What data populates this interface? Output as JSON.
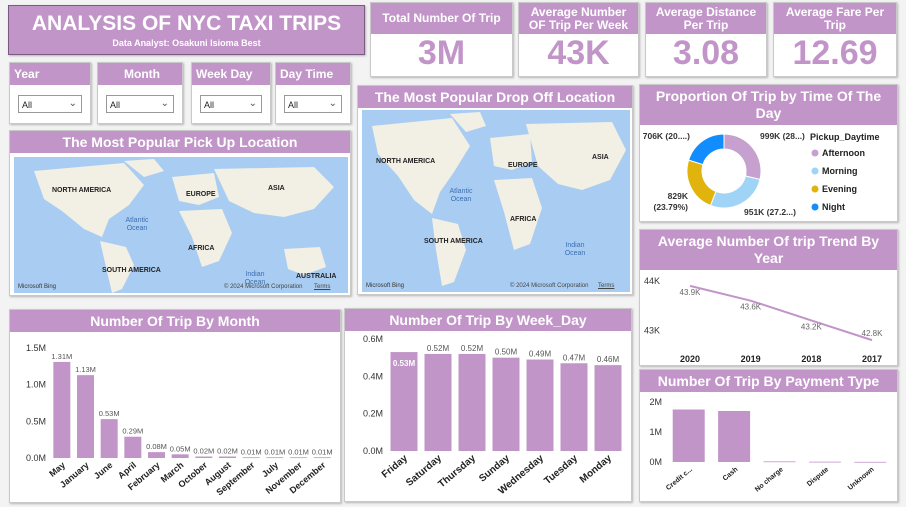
{
  "header": {
    "title": "ANALYSIS OF NYC TAXI TRIPS",
    "subtitle": "Data Analyst: Osakuni Isioma Best"
  },
  "kpis": [
    {
      "title": "Total Number Of Trip",
      "value": "3M"
    },
    {
      "title": "Average Number OF Trip Per Week",
      "value": "43K"
    },
    {
      "title": "Average Distance Per Trip",
      "value": "3.08"
    },
    {
      "title": "Average Fare Per Trip",
      "value": "12.69"
    }
  ],
  "slicers": [
    {
      "title": "Year",
      "value": "All"
    },
    {
      "title": "Month",
      "value": "All"
    },
    {
      "title": "Week Day",
      "value": "All"
    },
    {
      "title": "Day Time",
      "value": "All"
    }
  ],
  "maps": {
    "pickup": {
      "title": "The Most Popular Pick Up Location",
      "labels": [
        "NORTH AMERICA",
        "EUROPE",
        "ASIA",
        "Atlantic Ocean",
        "AFRICA",
        "SOUTH AMERICA",
        "Indian Ocean",
        "AUSTRALIA"
      ]
    },
    "dropoff": {
      "title": "The Most Popular Drop Off Location",
      "labels": [
        "NORTH AMERICA",
        "EUROPE",
        "ASIA",
        "Atlantic Ocean",
        "AFRICA",
        "SOUTH AMERICA",
        "Indian Ocean"
      ]
    },
    "provider": "Microsoft Bing",
    "copyright": "© 2024 Microsoft Corporation",
    "terms": "Terms"
  },
  "colors": {
    "accent": "#c295c9",
    "afternoon": "#c6a1cf",
    "morning": "#9fd4f6",
    "evening": "#e0b30d",
    "night": "#118dff"
  },
  "chart_data": [
    {
      "id": "donut",
      "type": "pie",
      "title": "Proportion Of Trip by Time Of The Day",
      "legend_title": "Pickup_Daytime",
      "legend_position": "right",
      "series": [
        {
          "name": "Afternoon",
          "value": 999,
          "label": "999K (28...)"
        },
        {
          "name": "Morning",
          "value": 951,
          "label": "951K (27.2...)"
        },
        {
          "name": "Evening",
          "value": 829,
          "label": "829K (23.79%)"
        },
        {
          "name": "Night",
          "value": 706,
          "label": "706K (20....)"
        }
      ]
    },
    {
      "id": "trend",
      "type": "line",
      "title": "Average Number Of trip Trend By Year",
      "categories": [
        "2020",
        "2019",
        "2018",
        "2017"
      ],
      "values": [
        43.9,
        43.6,
        43.2,
        42.8
      ],
      "data_labels": [
        "43.9K",
        "43.6K",
        "43.2K",
        "42.8K"
      ],
      "yticks": [
        "44K",
        "43K"
      ],
      "ylim": [
        42.6,
        44.1
      ]
    },
    {
      "id": "month",
      "type": "bar",
      "title": "Number Of Trip By Month",
      "categories": [
        "May",
        "January",
        "June",
        "April",
        "February",
        "March",
        "October",
        "August",
        "September",
        "July",
        "November",
        "December"
      ],
      "values": [
        1.31,
        1.13,
        0.53,
        0.29,
        0.08,
        0.05,
        0.02,
        0.02,
        0.01,
        0.01,
        0.01,
        0.01
      ],
      "data_labels": [
        "1.31M",
        "1.13M",
        "0.53M",
        "0.29M",
        "0.08M",
        "0.05M",
        "0.02M",
        "0.02M",
        "0.01M",
        "0.01M",
        "0.01M",
        "0.01M"
      ],
      "yticks": [
        "0.0M",
        "0.5M",
        "1.0M",
        "1.5M"
      ],
      "ylim": [
        0,
        1.5
      ]
    },
    {
      "id": "weekday",
      "type": "bar",
      "title": "Number Of Trip By Week_Day",
      "categories": [
        "Friday",
        "Saturday",
        "Thursday",
        "Sunday",
        "Wednesday",
        "Tuesday",
        "Monday"
      ],
      "values": [
        0.53,
        0.52,
        0.52,
        0.5,
        0.49,
        0.47,
        0.46
      ],
      "data_labels": [
        "0.53M",
        "0.52M",
        "0.52M",
        "0.50M",
        "0.49M",
        "0.47M",
        "0.46M"
      ],
      "yticks": [
        "0.0M",
        "0.2M",
        "0.4M",
        "0.6M"
      ],
      "ylim": [
        0,
        0.6
      ]
    },
    {
      "id": "payment",
      "type": "bar",
      "title": "Number Of Trip By Payment Type",
      "categories": [
        "Credit c...",
        "Cash",
        "No charge",
        "Dispute",
        "Unknown"
      ],
      "values": [
        1.75,
        1.7,
        0.02,
        0.01,
        0.005
      ],
      "yticks": [
        "0M",
        "1M",
        "2M"
      ],
      "ylim": [
        0,
        2
      ]
    }
  ]
}
